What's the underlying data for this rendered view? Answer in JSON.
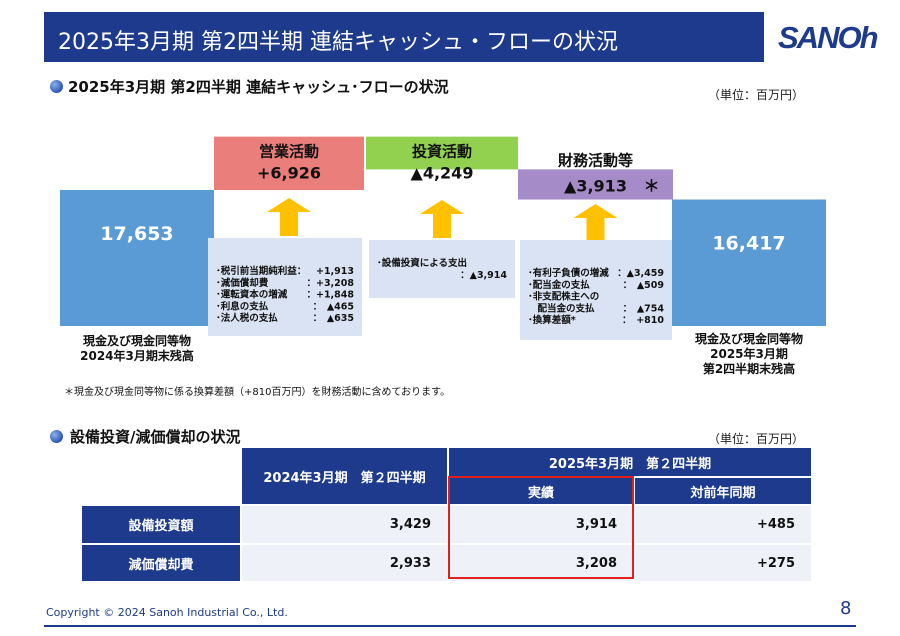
{
  "header": {
    "title": "2025年3月期 第2四半期 連結キャッシュ・フローの状況",
    "logo": "SANOh"
  },
  "cf_section": {
    "title": "2025年3月期 第2四半期 連結キャッシュ･フローの状況",
    "unit": "（単位：百万円）"
  },
  "chart_data": {
    "type": "bar",
    "subtype": "waterfall",
    "unit": "百万円",
    "categories": [
      "現金及び現金同等物 2024年3月期末残高",
      "営業活動",
      "投資活動",
      "財務活動等",
      "現金及び現金同等物 2025年3月期 第2四半期末残高"
    ],
    "values": [
      17653,
      6926,
      -4249,
      -3913,
      16417
    ],
    "bar_labels": [
      "17,653",
      "+6,926",
      "▲4,249",
      "▲3,913",
      "16,417"
    ],
    "bar_titles": [
      "",
      "営業活動",
      "投資活動",
      "財務活動等",
      ""
    ],
    "footnote_mark": "＊",
    "bottom_labels": {
      "start": [
        "現金及び現金同等物",
        "2024年3月期末残高"
      ],
      "end": [
        "現金及び現金同等物",
        "2025年3月期",
        "第2四半期末残高"
      ]
    },
    "colors": {
      "balance": "#5b9bd5",
      "operating": "#ea7e7a",
      "investing": "#92d050",
      "financing": "#a68bc9",
      "arrow": "#ffc000",
      "detail_bg": "#dae3f3"
    },
    "details": {
      "operating": [
        {
          "label": "･税引前当期純利益：",
          "value": "+1,913"
        },
        {
          "label": "･減価償却費",
          "value": "：+3,208"
        },
        {
          "label": "･運転資本の増減",
          "value": "：+1,848"
        },
        {
          "label": "･利息の支払",
          "value": "：　▲465"
        },
        {
          "label": "･法人税の支払",
          "value": "：　▲635"
        }
      ],
      "investing": [
        {
          "label": "･設備投資による支出",
          "value": ""
        },
        {
          "label": "",
          "value": "：▲3,914"
        }
      ],
      "financing": [
        {
          "label": "･有利子負債の増減",
          "value": "：▲3,459"
        },
        {
          "label": "･配当金の支払",
          "value": "：　▲509"
        },
        {
          "label": "･非支配株主への",
          "value": ""
        },
        {
          "label": "　配当金の支払",
          "value": "：　▲754"
        },
        {
          "label": "･換算差額*",
          "value": "：　+810"
        }
      ]
    }
  },
  "note": "＊現金及び現金同等物に係る換算差額（+810百万円）を財務活動に含めております。",
  "capex_section": {
    "title": "設備投資/減価償却の状況",
    "unit": "（単位：百万円）"
  },
  "table": {
    "col_prev": "2024年3月期　第２四半期",
    "col_curr_group": "2025年3月期　第２四半期",
    "col_actual": "実績",
    "col_yoy": "対前年同期",
    "rows": [
      {
        "label": "設備投資額",
        "prev": "3,429",
        "actual": "3,914",
        "yoy": "+485"
      },
      {
        "label": "減価償却費",
        "prev": "2,933",
        "actual": "3,208",
        "yoy": "+275"
      }
    ]
  },
  "footer": {
    "copyright": "Copyright © 2024 Sanoh Industrial Co., Ltd.",
    "page": "8"
  }
}
